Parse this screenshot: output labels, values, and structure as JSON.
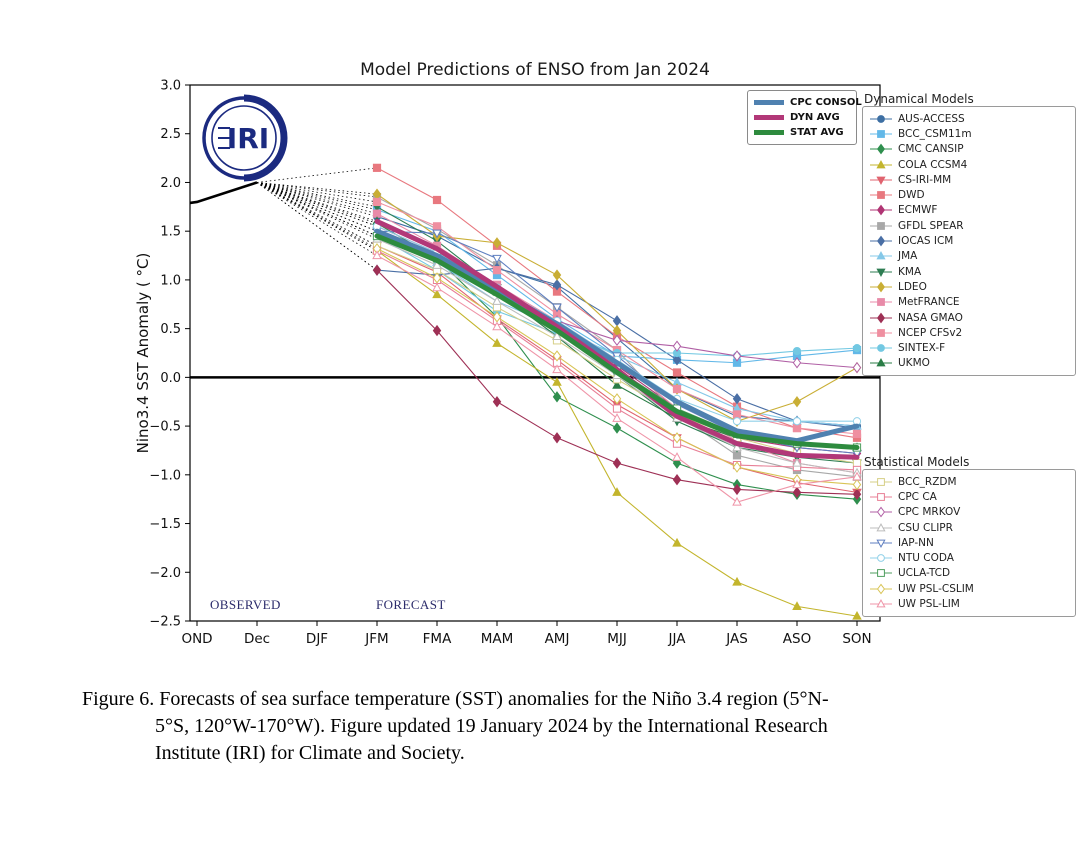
{
  "logo": {
    "text": "IRI",
    "color": "#1b2a80"
  },
  "caption": {
    "lines": [
      "Figure 6. Forecasts of sea surface temperature (SST) anomalies for the Niño 3.4 region (5°N-",
      "5°S, 120°W-170°W). Figure updated 19 January 2024 by the International Research",
      "Institute (IRI) for Climate and Society."
    ]
  },
  "chart_data": {
    "type": "line",
    "title": "Model Predictions of ENSO from Jan 2024",
    "xlabel": "",
    "ylabel": "Nino3.4 SST Anomaly ( °C)",
    "ylim": [
      -2.5,
      3.0
    ],
    "yticks": [
      3.0,
      2.5,
      2.0,
      1.5,
      1.0,
      0.5,
      0.0,
      -0.5,
      -1.0,
      -1.5,
      -2.0,
      -2.5
    ],
    "categories": [
      "OND",
      "Dec",
      "DJF",
      "JFM",
      "FMA",
      "MAM",
      "AMJ",
      "MJJ",
      "JJA",
      "JAS",
      "ASO",
      "SON"
    ],
    "forecast_start_index": 3,
    "zero_line": true,
    "grid": false,
    "observed": {
      "label": "OBSERVED",
      "categories": [
        "OND",
        "Dec"
      ],
      "values": [
        1.8,
        2.0
      ],
      "color": "#000000"
    },
    "forecast_label": "FORECAST",
    "averages": [
      {
        "name": "CPC CONSOL",
        "color": "#4f81b0",
        "values": [
          1.5,
          1.25,
          0.9,
          0.55,
          0.15,
          -0.25,
          -0.55,
          -0.65,
          -0.5
        ]
      },
      {
        "name": "DYN AVG",
        "color": "#b23878",
        "values": [
          1.6,
          1.32,
          0.93,
          0.52,
          0.08,
          -0.4,
          -0.68,
          -0.8,
          -0.82
        ]
      },
      {
        "name": "STAT AVG",
        "color": "#2e8b3e",
        "values": [
          1.45,
          1.2,
          0.85,
          0.48,
          0.05,
          -0.35,
          -0.6,
          -0.68,
          -0.72
        ]
      }
    ],
    "dynamical": {
      "header": "Dynamical Models",
      "series": [
        {
          "name": "AUS-ACCESS",
          "color": "#3d6fa3",
          "marker": "circle",
          "fill": "filled",
          "values": [
            1.65,
            1.45,
            1.12,
            0.93,
            0.4,
            -0.12,
            -0.4,
            -0.45,
            -0.5
          ]
        },
        {
          "name": "BCC_CSM11m",
          "color": "#62b8e8",
          "marker": "square",
          "fill": "filled",
          "values": [
            1.72,
            1.5,
            1.05,
            0.6,
            0.22,
            0.18,
            0.15,
            0.22,
            0.28
          ]
        },
        {
          "name": "CMC CANSIP",
          "color": "#2f8f4e",
          "marker": "diamond",
          "fill": "filled",
          "values": [
            1.58,
            1.22,
            0.62,
            -0.2,
            -0.52,
            -0.88,
            -1.1,
            -1.2,
            -1.25
          ]
        },
        {
          "name": "COLA CCSM4",
          "color": "#c3b52d",
          "marker": "triangle-up",
          "fill": "filled",
          "values": [
            1.3,
            0.85,
            0.35,
            -0.05,
            -1.18,
            -1.7,
            -2.1,
            -2.35,
            -2.45
          ]
        },
        {
          "name": "CS-IRI-MM",
          "color": "#e0636f",
          "marker": "triangle-down",
          "fill": "filled",
          "values": [
            1.35,
            1.08,
            0.6,
            0.18,
            -0.28,
            -0.62,
            -0.92,
            -1.08,
            -1.18
          ]
        },
        {
          "name": "DWD",
          "color": "#e8787f",
          "marker": "square",
          "fill": "filled",
          "values": [
            2.15,
            1.82,
            1.35,
            0.88,
            0.42,
            0.05,
            -0.3,
            -0.52,
            -0.62
          ]
        },
        {
          "name": "ECMWF",
          "color": "#b03574",
          "marker": "diamond",
          "fill": "filled",
          "values": [
            1.55,
            1.28,
            0.92,
            0.55,
            0.12,
            -0.32,
            -0.62,
            -0.72,
            -0.78
          ]
        },
        {
          "name": "GFDL SPEAR",
          "color": "#a8a8a8",
          "marker": "square",
          "fill": "filled",
          "values": [
            1.85,
            1.52,
            1.15,
            0.72,
            0.28,
            -0.38,
            -0.8,
            -0.95,
            -1.02
          ]
        },
        {
          "name": "IOCAS ICM",
          "color": "#4a6fa5",
          "marker": "diamond",
          "fill": "filled",
          "values": [
            1.1,
            1.05,
            1.12,
            0.95,
            0.58,
            0.18,
            -0.22,
            -0.45,
            -0.52
          ]
        },
        {
          "name": "JMA",
          "color": "#85c8e8",
          "marker": "triangle-up",
          "fill": "filled",
          "values": [
            1.5,
            1.18,
            0.78,
            0.52,
            0.22,
            -0.05,
            -0.32,
            -0.45,
            -0.5
          ]
        },
        {
          "name": "KMA",
          "color": "#2e7d52",
          "marker": "triangle-down",
          "fill": "filled",
          "values": [
            1.75,
            1.4,
            0.92,
            0.48,
            0.02,
            -0.45,
            -0.72,
            -0.82,
            -0.88
          ]
        },
        {
          "name": "LDEO",
          "color": "#c9ae35",
          "marker": "diamond",
          "fill": "filled",
          "values": [
            1.88,
            1.45,
            1.38,
            1.05,
            0.48,
            -0.12,
            -0.45,
            -0.25,
            0.1
          ]
        },
        {
          "name": "MetFRANCE",
          "color": "#e88aa8",
          "marker": "square",
          "fill": "filled",
          "values": [
            1.68,
            1.35,
            0.95,
            0.58,
            0.18,
            -0.32,
            -0.65,
            -0.88,
            -0.98
          ]
        },
        {
          "name": "NASA GMAO",
          "color": "#9e3055",
          "marker": "diamond",
          "fill": "filled",
          "values": [
            1.1,
            0.48,
            -0.25,
            -0.62,
            -0.88,
            -1.05,
            -1.15,
            -1.18,
            -1.2
          ]
        },
        {
          "name": "NCEP CFSv2",
          "color": "#ef8fa0",
          "marker": "square",
          "fill": "filled",
          "values": [
            1.8,
            1.55,
            1.1,
            0.65,
            0.28,
            -0.12,
            -0.38,
            -0.52,
            -0.58
          ]
        },
        {
          "name": "SINTEX-F",
          "color": "#72c8e2",
          "marker": "circle",
          "fill": "filled",
          "values": [
            1.45,
            1.1,
            0.68,
            0.45,
            0.25,
            0.25,
            0.22,
            0.27,
            0.3
          ]
        },
        {
          "name": "UKMO",
          "color": "#2a7d46",
          "marker": "triangle-up",
          "fill": "filled",
          "values": [
            1.6,
            1.3,
            0.88,
            0.42,
            -0.08,
            -0.42,
            -0.62,
            -0.68,
            -0.72
          ]
        }
      ]
    },
    "statistical": {
      "header": "Statistical Models",
      "series": [
        {
          "name": "BCC_RZDM",
          "color": "#d6cf87",
          "marker": "square",
          "fill": "open",
          "values": [
            1.35,
            1.1,
            0.72,
            0.38,
            -0.02,
            -0.38,
            -0.62,
            -0.78,
            -0.88
          ]
        },
        {
          "name": "CPC CA",
          "color": "#e87f96",
          "marker": "square",
          "fill": "open",
          "values": [
            1.3,
            1.0,
            0.58,
            0.15,
            -0.32,
            -0.68,
            -0.9,
            -0.92,
            -0.95
          ]
        },
        {
          "name": "CPC MRKOV",
          "color": "#b05fa5",
          "marker": "diamond",
          "fill": "open",
          "values": [
            1.45,
            1.22,
            0.88,
            0.58,
            0.38,
            0.32,
            0.22,
            0.15,
            0.1
          ]
        },
        {
          "name": "CSU CLIPR",
          "color": "#bcbcbc",
          "marker": "triangle-up",
          "fill": "open",
          "values": [
            1.42,
            1.15,
            0.78,
            0.42,
            0.02,
            -0.42,
            -0.72,
            -0.88,
            -0.98
          ]
        },
        {
          "name": "IAP-NN",
          "color": "#5f7fc0",
          "marker": "triangle-down",
          "fill": "open",
          "values": [
            1.5,
            1.48,
            1.22,
            0.72,
            0.22,
            -0.28,
            -0.58,
            -0.72,
            -0.78
          ]
        },
        {
          "name": "NTU CODA",
          "color": "#90d0e8",
          "marker": "circle",
          "fill": "open",
          "values": [
            1.55,
            1.28,
            0.92,
            0.58,
            0.18,
            -0.22,
            -0.45,
            -0.45,
            -0.45
          ]
        },
        {
          "name": "UCLA-TCD",
          "color": "#4f9e5f",
          "marker": "square",
          "fill": "open",
          "values": [
            1.45,
            1.22,
            0.88,
            0.52,
            0.08,
            -0.32,
            -0.58,
            -0.68,
            -0.72
          ]
        },
        {
          "name": "UW PSL-CSLIM",
          "color": "#d8c455",
          "marker": "diamond",
          "fill": "open",
          "values": [
            1.32,
            1.02,
            0.62,
            0.22,
            -0.22,
            -0.62,
            -0.92,
            -1.05,
            -1.1
          ]
        },
        {
          "name": "UW PSL-LIM",
          "color": "#ef95a8",
          "marker": "triangle-up",
          "fill": "open",
          "values": [
            1.25,
            0.92,
            0.52,
            0.08,
            -0.42,
            -0.82,
            -1.28,
            -1.1,
            -1.02
          ]
        }
      ]
    }
  }
}
